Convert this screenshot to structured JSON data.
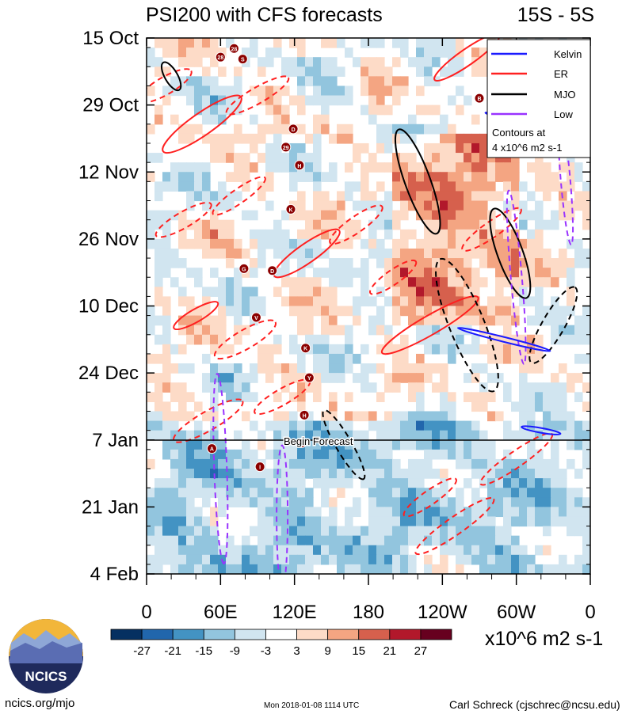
{
  "chart_data": {
    "type": "heatmap",
    "title": "PSI200 with CFS forecasts",
    "region": "15S - 5S",
    "x_ticks": [
      "0",
      "60E",
      "120E",
      "180",
      "120W",
      "60W",
      "0"
    ],
    "y_ticks": [
      "15 Oct",
      "29 Oct",
      "12 Nov",
      "26 Nov",
      "10 Dec",
      "24 Dec",
      "7 Jan",
      "21 Jan",
      "4 Feb"
    ],
    "x_range": [
      0,
      360
    ],
    "y_range": [
      "15 Oct",
      "4 Feb"
    ],
    "forecast_marker": {
      "date": "7 Jan",
      "label": "Begin Forecast"
    },
    "legend": {
      "position": "top-right",
      "entries": [
        {
          "name": "Kelvin",
          "color": "#1a1aff"
        },
        {
          "name": "ER",
          "color": "#ff2020"
        },
        {
          "name": "MJO",
          "color": "#000000"
        },
        {
          "name": "Low",
          "color": "#9933ff"
        }
      ],
      "note_line1": "Contours at",
      "note_line2": "4 x10^6 m2 s-1"
    },
    "colorbar": {
      "ticks": [
        "-27",
        "-21",
        "-15",
        "-9",
        "-3",
        "3",
        "9",
        "15",
        "21",
        "27"
      ],
      "colors": [
        "#053061",
        "#2166ac",
        "#4393c3",
        "#92c5de",
        "#d1e5f0",
        "#ffffff",
        "#fddbc7",
        "#f4a582",
        "#d6604d",
        "#b2182b",
        "#67001f"
      ],
      "units": "x10^6 m2 s-1"
    },
    "storms": [
      {
        "lon": 60,
        "day": 4.0,
        "label": "28"
      },
      {
        "lon": 78,
        "day": 4.4,
        "label": "S"
      },
      {
        "lon": 71,
        "day": 2.2,
        "label": "28"
      },
      {
        "lon": 119,
        "day": 19.0,
        "label": "D"
      },
      {
        "lon": 113,
        "day": 22.8,
        "label": "29"
      },
      {
        "lon": 124,
        "day": 26.6,
        "label": "H"
      },
      {
        "lon": 117,
        "day": 35.8,
        "label": "K"
      },
      {
        "lon": 79,
        "day": 48.2,
        "label": "G"
      },
      {
        "lon": 102,
        "day": 48.6,
        "label": "D"
      },
      {
        "lon": 89,
        "day": 58.4,
        "label": "V"
      },
      {
        "lon": 129,
        "day": 64.8,
        "label": "K"
      },
      {
        "lon": 132,
        "day": 71.0,
        "label": "Y"
      },
      {
        "lon": 128,
        "day": 78.8,
        "label": "H"
      },
      {
        "lon": 126,
        "day": 84.6,
        "label": "B"
      },
      {
        "lon": 53,
        "day": 85.8,
        "label": "A"
      },
      {
        "lon": 92,
        "day": 89.6,
        "label": "I"
      },
      {
        "lon": 270,
        "day": 12.6,
        "label": "B"
      }
    ]
  },
  "branding": {
    "logo_text": "NCICS",
    "site": "ncics.org/mjo",
    "timestamp": "Mon 2018-01-08 1114 UTC",
    "author": "Carl Schreck (cjschrec@ncsu.edu)"
  }
}
